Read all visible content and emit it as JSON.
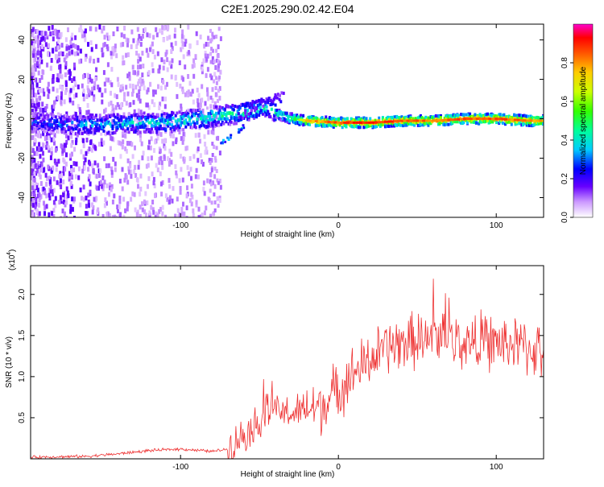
{
  "chart_data": [
    {
      "type": "heatmap",
      "title": "C2E1.2025.290.02.42.E04",
      "xlabel": "Height of straight line (km)",
      "ylabel": "Frequency (Hz)",
      "xlim": [
        -195,
        130
      ],
      "ylim": [
        -50,
        48
      ],
      "xticks": [
        -100,
        0,
        100
      ],
      "yticks": [
        -40,
        -20,
        0,
        20,
        40
      ],
      "colorbar": {
        "label": "Normalized spectral amplitude",
        "range": [
          0,
          1
        ],
        "ticks": [
          0.0,
          0.2,
          0.4,
          0.6,
          0.8
        ]
      },
      "ridge": [
        {
          "x": -190,
          "f": -2,
          "amp": 0.25
        },
        {
          "x": -170,
          "f": -3,
          "amp": 0.3
        },
        {
          "x": -150,
          "f": -3,
          "amp": 0.35
        },
        {
          "x": -130,
          "f": -2,
          "amp": 0.38
        },
        {
          "x": -110,
          "f": -2,
          "amp": 0.4
        },
        {
          "x": -90,
          "f": 0,
          "amp": 0.42
        },
        {
          "x": -70,
          "f": 2,
          "amp": 0.45
        },
        {
          "x": -55,
          "f": 4,
          "amp": 0.45
        },
        {
          "x": -45,
          "f": 6,
          "amp": 0.4
        },
        {
          "x": -38,
          "f": 2,
          "amp": 0.5
        },
        {
          "x": -30,
          "f": 0,
          "amp": 0.55
        },
        {
          "x": -20,
          "f": -1,
          "amp": 0.75
        },
        {
          "x": 0,
          "f": -2,
          "amp": 0.85
        },
        {
          "x": 20,
          "f": -2,
          "amp": 0.9
        },
        {
          "x": 40,
          "f": -1,
          "amp": 0.85
        },
        {
          "x": 60,
          "f": -1,
          "amp": 0.82
        },
        {
          "x": 80,
          "f": 0,
          "amp": 0.85
        },
        {
          "x": 100,
          "f": 0,
          "amp": 0.85
        },
        {
          "x": 120,
          "f": -1,
          "amp": 0.8
        },
        {
          "x": 130,
          "f": -1,
          "amp": 0.75
        }
      ]
    },
    {
      "type": "line",
      "xlabel": "Height of straight line (km)",
      "ylabel": "SNR (10 * v/v)",
      "scale_label": "(x10",
      "scale_exp": "4",
      "xlim": [
        -195,
        130
      ],
      "ylim": [
        0,
        2.35
      ],
      "xticks": [
        -100,
        0,
        100
      ],
      "yticks": [
        0.5,
        1.0,
        1.5,
        2.0
      ],
      "series": [
        {
          "name": "SNR",
          "color": "#ee3333",
          "points": [
            {
              "x": -195,
              "y": 0.02
            },
            {
              "x": -160,
              "y": 0.03
            },
            {
              "x": -140,
              "y": 0.06
            },
            {
              "x": -120,
              "y": 0.1
            },
            {
              "x": -100,
              "y": 0.12
            },
            {
              "x": -80,
              "y": 0.09
            },
            {
              "x": -70,
              "y": 0.12
            },
            {
              "x": -60,
              "y": 0.3
            },
            {
              "x": -50,
              "y": 0.45
            },
            {
              "x": -45,
              "y": 0.6
            },
            {
              "x": -40,
              "y": 0.58
            },
            {
              "x": -30,
              "y": 0.55
            },
            {
              "x": -20,
              "y": 0.6
            },
            {
              "x": -10,
              "y": 0.65
            },
            {
              "x": 0,
              "y": 0.85
            },
            {
              "x": 10,
              "y": 1.05
            },
            {
              "x": 20,
              "y": 1.2
            },
            {
              "x": 30,
              "y": 1.35
            },
            {
              "x": 40,
              "y": 1.4
            },
            {
              "x": 50,
              "y": 1.45
            },
            {
              "x": 60,
              "y": 1.5
            },
            {
              "x": 70,
              "y": 1.45
            },
            {
              "x": 80,
              "y": 1.4
            },
            {
              "x": 90,
              "y": 1.45
            },
            {
              "x": 100,
              "y": 1.4
            },
            {
              "x": 110,
              "y": 1.4
            },
            {
              "x": 120,
              "y": 1.35
            },
            {
              "x": 130,
              "y": 1.3
            }
          ]
        }
      ]
    }
  ]
}
